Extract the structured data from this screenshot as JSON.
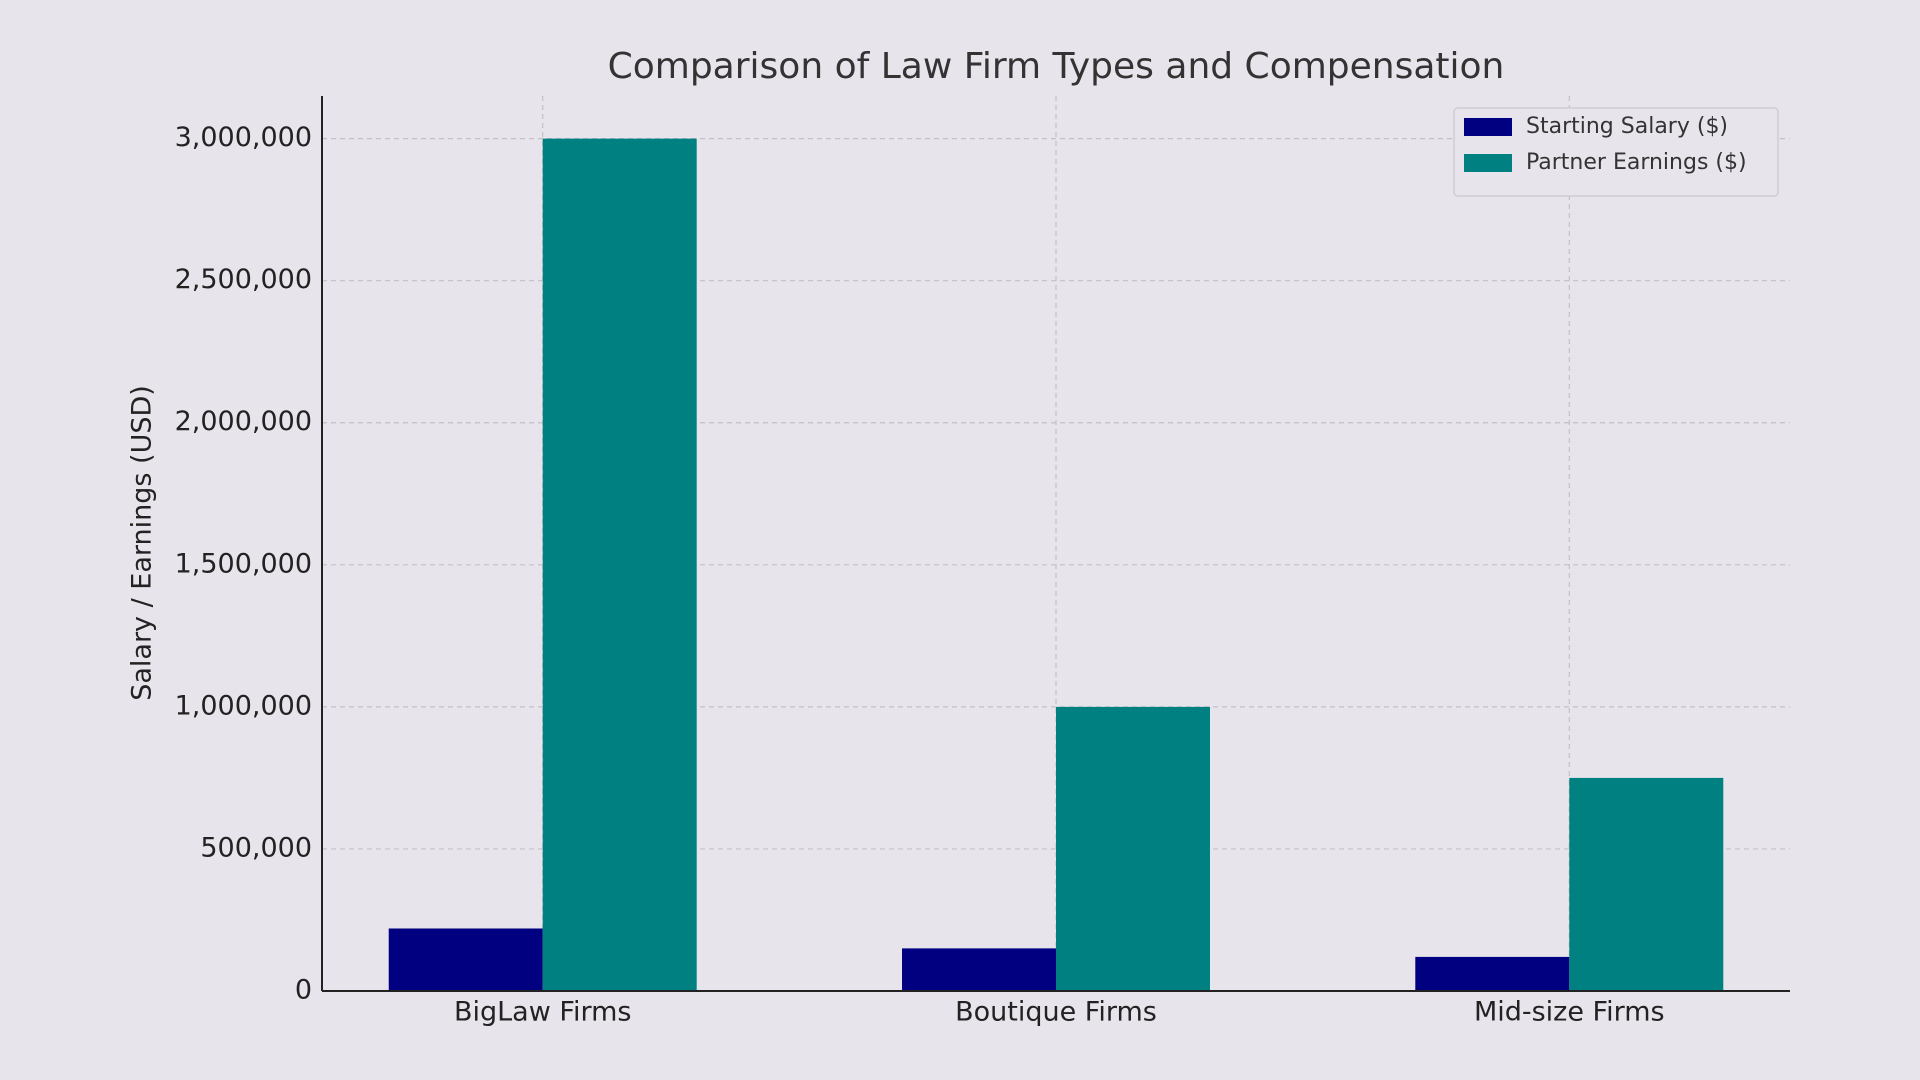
{
  "chart_data": {
    "type": "bar",
    "title": "Comparison of Law Firm Types and Compensation",
    "ylabel": "Salary / Earnings (USD)",
    "categories": [
      "BigLaw Firms",
      "Boutique Firms",
      "Mid-size Firms"
    ],
    "series": [
      {
        "name": "Starting Salary ($)",
        "color": "#000080",
        "values": [
          220000,
          150000,
          120000
        ]
      },
      {
        "name": "Partner Earnings ($)",
        "color": "#008080",
        "values": [
          3000000,
          1000000,
          750000
        ]
      }
    ],
    "ylim": [
      0,
      3150000
    ],
    "yticks": [
      0,
      {
        "value": 500000,
        "label": "500,000"
      },
      {
        "value": 1000000,
        "label": "1,000,000"
      },
      {
        "value": 1500000,
        "label": "1,500,000"
      },
      {
        "value": 2000000,
        "label": "2,000,000"
      },
      {
        "value": 2500000,
        "label": "2,500,000"
      },
      {
        "value": 3000000,
        "label": "3,000,000"
      }
    ],
    "grid": true,
    "legend": "upper right"
  }
}
